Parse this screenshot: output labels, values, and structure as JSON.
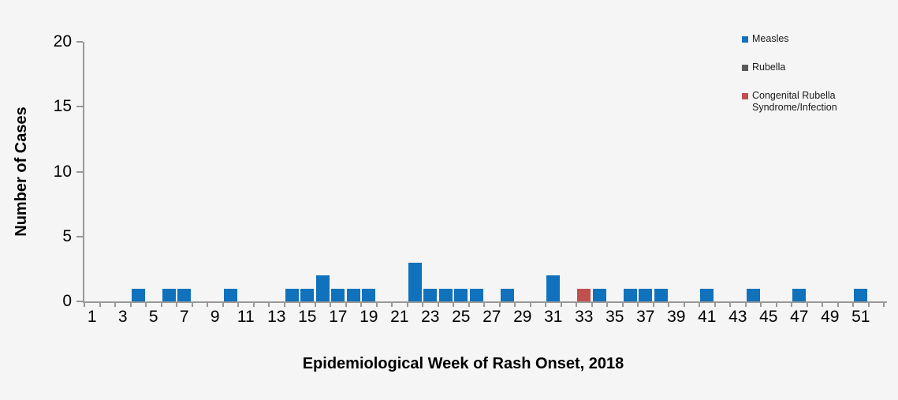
{
  "chart_data": {
    "type": "bar",
    "title": "",
    "xlabel": "Epidemiological Week of Rash Onset, 2018",
    "ylabel": "Number of Cases",
    "x_axis": {
      "weeks_min": 1,
      "weeks_max": 52,
      "tick_labels": [
        "1",
        "3",
        "5",
        "7",
        "9",
        "11",
        "13",
        "15",
        "17",
        "19",
        "21",
        "23",
        "25",
        "27",
        "29",
        "31",
        "33",
        "35",
        "37",
        "39",
        "41",
        "43",
        "45",
        "47",
        "49",
        "51"
      ]
    },
    "y_axis": {
      "min": 0,
      "max": 20,
      "ticks": [
        0,
        5,
        10,
        15,
        20
      ]
    },
    "grid": false,
    "legend_position": "top-right",
    "series": [
      {
        "name": "Measles",
        "color": "#1072BC",
        "points": [
          [
            4,
            1
          ],
          [
            6,
            1
          ],
          [
            7,
            1
          ],
          [
            10,
            1
          ],
          [
            14,
            1
          ],
          [
            15,
            1
          ],
          [
            16,
            2
          ],
          [
            17,
            1
          ],
          [
            18,
            1
          ],
          [
            19,
            1
          ],
          [
            22,
            3
          ],
          [
            23,
            1
          ],
          [
            24,
            1
          ],
          [
            25,
            1
          ],
          [
            26,
            1
          ],
          [
            28,
            1
          ],
          [
            31,
            2
          ],
          [
            34,
            1
          ],
          [
            36,
            1
          ],
          [
            37,
            1
          ],
          [
            38,
            1
          ],
          [
            41,
            1
          ],
          [
            44,
            1
          ],
          [
            47,
            1
          ],
          [
            51,
            1
          ]
        ]
      },
      {
        "name": "Rubella",
        "color": "#595959",
        "points": []
      },
      {
        "name": "Congenital Rubella Syndrome/Infection",
        "color": "#C0504D",
        "points": [
          [
            33,
            1
          ]
        ]
      }
    ]
  },
  "colors": {
    "background": "#F5F5F5",
    "axis": "#989898",
    "tick_text": "#000000",
    "legend_text": "#1A1A1A"
  }
}
